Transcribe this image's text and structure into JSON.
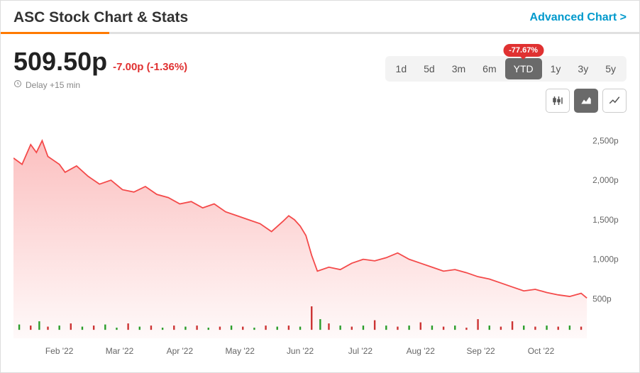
{
  "header": {
    "title": "ASC Stock Chart & Stats",
    "advanced_link": "Advanced Chart >"
  },
  "progress_bar": {
    "fill_percent": 17,
    "fill_color": "#ff7a00",
    "bg_color": "#e0e0e0"
  },
  "quote": {
    "price": "509.50p",
    "change": "-7.00p (-1.36%)",
    "delay": "Delay +15 min"
  },
  "periods": {
    "items": [
      "1d",
      "5d",
      "3m",
      "6m",
      "YTD",
      "1y",
      "3y",
      "5y"
    ],
    "active_index": 4,
    "badge": "-77.67%",
    "badge_color": "#e03131"
  },
  "chart_types": {
    "items": [
      "candlestick",
      "area",
      "line"
    ],
    "active_index": 1
  },
  "chart": {
    "type": "area",
    "line_color": "#f44a4a",
    "line_width": 1.8,
    "fill_top_color": "rgba(244,74,74,0.35)",
    "fill_bottom_color": "rgba(244,74,74,0.03)",
    "background": "#ffffff",
    "ylim": [
      0,
      2700
    ],
    "y_ticks": [
      500,
      1000,
      1500,
      2000,
      2500
    ],
    "y_tick_suffix": "p",
    "x_labels": [
      "Feb '22",
      "Mar '22",
      "Apr '22",
      "May '22",
      "Jun '22",
      "Jul '22",
      "Aug '22",
      "Sep '22",
      "Oct '22"
    ],
    "x_positions_pct": [
      8,
      18.5,
      29,
      39.5,
      50,
      60.5,
      71,
      81.5,
      92
    ],
    "series": [
      {
        "x": 0.0,
        "y": 2280
      },
      {
        "x": 1.5,
        "y": 2200
      },
      {
        "x": 3.0,
        "y": 2450
      },
      {
        "x": 4.0,
        "y": 2350
      },
      {
        "x": 5.0,
        "y": 2500
      },
      {
        "x": 6.0,
        "y": 2300
      },
      {
        "x": 7.0,
        "y": 2250
      },
      {
        "x": 8.0,
        "y": 2200
      },
      {
        "x": 9.0,
        "y": 2100
      },
      {
        "x": 11.0,
        "y": 2180
      },
      {
        "x": 13.0,
        "y": 2050
      },
      {
        "x": 15.0,
        "y": 1950
      },
      {
        "x": 17.0,
        "y": 2000
      },
      {
        "x": 19.0,
        "y": 1880
      },
      {
        "x": 21.0,
        "y": 1850
      },
      {
        "x": 23.0,
        "y": 1920
      },
      {
        "x": 25.0,
        "y": 1820
      },
      {
        "x": 27.0,
        "y": 1780
      },
      {
        "x": 29.0,
        "y": 1700
      },
      {
        "x": 31.0,
        "y": 1730
      },
      {
        "x": 33.0,
        "y": 1650
      },
      {
        "x": 35.0,
        "y": 1700
      },
      {
        "x": 37.0,
        "y": 1600
      },
      {
        "x": 39.0,
        "y": 1550
      },
      {
        "x": 41.0,
        "y": 1500
      },
      {
        "x": 43.0,
        "y": 1450
      },
      {
        "x": 45.0,
        "y": 1350
      },
      {
        "x": 47.0,
        "y": 1480
      },
      {
        "x": 48.0,
        "y": 1550
      },
      {
        "x": 49.0,
        "y": 1500
      },
      {
        "x": 50.0,
        "y": 1420
      },
      {
        "x": 51.0,
        "y": 1300
      },
      {
        "x": 52.0,
        "y": 1050
      },
      {
        "x": 53.0,
        "y": 850
      },
      {
        "x": 55.0,
        "y": 900
      },
      {
        "x": 57.0,
        "y": 870
      },
      {
        "x": 59.0,
        "y": 950
      },
      {
        "x": 61.0,
        "y": 1000
      },
      {
        "x": 63.0,
        "y": 980
      },
      {
        "x": 65.0,
        "y": 1020
      },
      {
        "x": 67.0,
        "y": 1080
      },
      {
        "x": 69.0,
        "y": 1000
      },
      {
        "x": 71.0,
        "y": 950
      },
      {
        "x": 73.0,
        "y": 900
      },
      {
        "x": 75.0,
        "y": 850
      },
      {
        "x": 77.0,
        "y": 870
      },
      {
        "x": 79.0,
        "y": 830
      },
      {
        "x": 81.0,
        "y": 780
      },
      {
        "x": 83.0,
        "y": 750
      },
      {
        "x": 85.0,
        "y": 700
      },
      {
        "x": 87.0,
        "y": 650
      },
      {
        "x": 89.0,
        "y": 600
      },
      {
        "x": 91.0,
        "y": 620
      },
      {
        "x": 93.0,
        "y": 580
      },
      {
        "x": 95.0,
        "y": 550
      },
      {
        "x": 97.0,
        "y": 530
      },
      {
        "x": 99.0,
        "y": 570
      },
      {
        "x": 100.0,
        "y": 510
      }
    ],
    "volume": {
      "baseline_pct": 96,
      "max_height_pct": 11,
      "bars": [
        {
          "x": 1,
          "h": 2.5,
          "c": "#2a9d2a"
        },
        {
          "x": 3,
          "h": 2,
          "c": "#c33"
        },
        {
          "x": 4.5,
          "h": 4,
          "c": "#2a9d2a"
        },
        {
          "x": 6,
          "h": 1.5,
          "c": "#c33"
        },
        {
          "x": 8,
          "h": 2,
          "c": "#2a9d2a"
        },
        {
          "x": 10,
          "h": 3,
          "c": "#c33"
        },
        {
          "x": 12,
          "h": 1.5,
          "c": "#2a9d2a"
        },
        {
          "x": 14,
          "h": 2,
          "c": "#c33"
        },
        {
          "x": 16,
          "h": 2.5,
          "c": "#2a9d2a"
        },
        {
          "x": 18,
          "h": 1,
          "c": "#2a9d2a"
        },
        {
          "x": 20,
          "h": 3,
          "c": "#c33"
        },
        {
          "x": 22,
          "h": 1.5,
          "c": "#2a9d2a"
        },
        {
          "x": 24,
          "h": 2,
          "c": "#c33"
        },
        {
          "x": 26,
          "h": 1,
          "c": "#2a9d2a"
        },
        {
          "x": 28,
          "h": 2,
          "c": "#c33"
        },
        {
          "x": 30,
          "h": 1.5,
          "c": "#2a9d2a"
        },
        {
          "x": 32,
          "h": 2,
          "c": "#c33"
        },
        {
          "x": 34,
          "h": 1,
          "c": "#2a9d2a"
        },
        {
          "x": 36,
          "h": 1.5,
          "c": "#c33"
        },
        {
          "x": 38,
          "h": 2,
          "c": "#2a9d2a"
        },
        {
          "x": 40,
          "h": 1.5,
          "c": "#c33"
        },
        {
          "x": 42,
          "h": 1,
          "c": "#2a9d2a"
        },
        {
          "x": 44,
          "h": 2,
          "c": "#c33"
        },
        {
          "x": 46,
          "h": 1.5,
          "c": "#2a9d2a"
        },
        {
          "x": 48,
          "h": 2,
          "c": "#c33"
        },
        {
          "x": 50,
          "h": 1.5,
          "c": "#2a9d2a"
        },
        {
          "x": 52,
          "h": 11,
          "c": "#c33"
        },
        {
          "x": 53.5,
          "h": 5,
          "c": "#2a9d2a"
        },
        {
          "x": 55,
          "h": 3,
          "c": "#c33"
        },
        {
          "x": 57,
          "h": 2,
          "c": "#2a9d2a"
        },
        {
          "x": 59,
          "h": 1.5,
          "c": "#c33"
        },
        {
          "x": 61,
          "h": 2,
          "c": "#2a9d2a"
        },
        {
          "x": 63,
          "h": 4.5,
          "c": "#c33"
        },
        {
          "x": 65,
          "h": 2,
          "c": "#2a9d2a"
        },
        {
          "x": 67,
          "h": 1.5,
          "c": "#c33"
        },
        {
          "x": 69,
          "h": 2,
          "c": "#2a9d2a"
        },
        {
          "x": 71,
          "h": 3.5,
          "c": "#c33"
        },
        {
          "x": 73,
          "h": 2,
          "c": "#2a9d2a"
        },
        {
          "x": 75,
          "h": 1.5,
          "c": "#c33"
        },
        {
          "x": 77,
          "h": 2,
          "c": "#2a9d2a"
        },
        {
          "x": 79,
          "h": 1,
          "c": "#c33"
        },
        {
          "x": 81,
          "h": 5,
          "c": "#c33"
        },
        {
          "x": 83,
          "h": 2,
          "c": "#2a9d2a"
        },
        {
          "x": 85,
          "h": 1.5,
          "c": "#c33"
        },
        {
          "x": 87,
          "h": 4,
          "c": "#c33"
        },
        {
          "x": 89,
          "h": 2,
          "c": "#2a9d2a"
        },
        {
          "x": 91,
          "h": 1.5,
          "c": "#c33"
        },
        {
          "x": 93,
          "h": 2,
          "c": "#2a9d2a"
        },
        {
          "x": 95,
          "h": 1.5,
          "c": "#c33"
        },
        {
          "x": 97,
          "h": 2,
          "c": "#2a9d2a"
        },
        {
          "x": 99,
          "h": 1.5,
          "c": "#c33"
        }
      ]
    }
  }
}
